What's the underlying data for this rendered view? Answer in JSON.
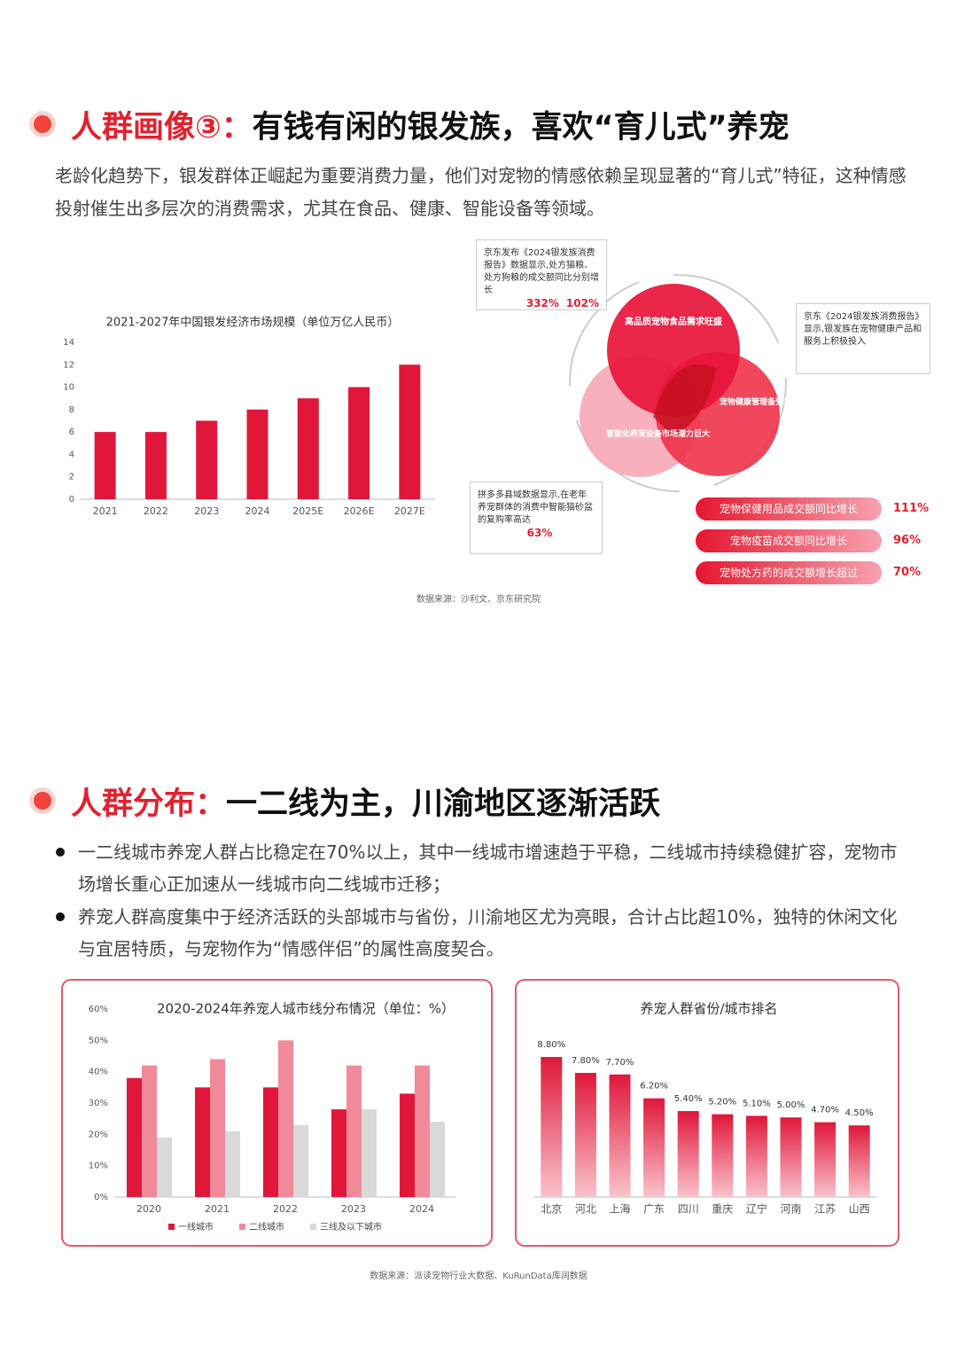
{
  "section1": {
    "title_highlight": "人群画像③：",
    "title": "有钱有闲的银发族，喜欢“育儿式”养宠",
    "paragraph": "老龄化趋势下，银发群体正崛起为重要消费力量，他们对宠物的情感依赖呈现显著的“育儿式”特征，这种情感投射催生出多层次的消费需求，尤其在食品、健康、智能设备等领域。"
  },
  "chart_data": [
    {
      "type": "bar",
      "title": "2021-2027年中国银发经济市场规模（单位万亿人民币）",
      "categories": [
        "2021",
        "2022",
        "2023",
        "2024",
        "2025E",
        "2026E",
        "2027E"
      ],
      "values": [
        6,
        6,
        7,
        8,
        9,
        10,
        12
      ],
      "color": "#e0173a",
      "ylim": [
        0,
        14
      ],
      "yticks": [
        0,
        2,
        4,
        6,
        8,
        10,
        12,
        14
      ],
      "grid": false
    },
    {
      "type": "grouped_bar",
      "title": "2020-2024年养宠人城市线分布情况（单位：%）",
      "categories": [
        "2020",
        "2021",
        "2022",
        "2023",
        "2024"
      ],
      "series": [
        {
          "name": "一线城市",
          "color": "#e0173a",
          "values": [
            38,
            35,
            35,
            28,
            33
          ]
        },
        {
          "name": "二线城市",
          "color": "#f08a98",
          "values": [
            42,
            44,
            50,
            42,
            42
          ]
        },
        {
          "name": "三线及以下城市",
          "color": "#d9d9d9",
          "values": [
            19,
            21,
            23,
            28,
            24
          ]
        }
      ],
      "ylim": [
        0,
        60
      ],
      "yticks": [
        {
          "value": 0,
          "label": "0%"
        },
        {
          "value": 10,
          "label": "10%"
        },
        {
          "value": 20,
          "label": "20%"
        },
        {
          "value": 30,
          "label": "30%"
        },
        {
          "value": 40,
          "label": "40%"
        },
        {
          "value": 50,
          "label": "50%"
        },
        {
          "value": 60,
          "label": "60%"
        }
      ],
      "grid": false,
      "legend": "bottom"
    },
    {
      "type": "bar",
      "title": "养宠人群省份/城市排名",
      "categories": [
        "北京",
        "河北",
        "上海",
        "广东",
        "四川",
        "重庆",
        "辽宁",
        "河南",
        "江苏",
        "山西"
      ],
      "values": [
        8.8,
        7.8,
        7.7,
        6.2,
        5.4,
        5.2,
        5.1,
        5.0,
        4.7,
        4.5
      ],
      "value_labels": [
        "8.80%",
        "7.80%",
        "7.70%",
        "6.20%",
        "5.40%",
        "5.20%",
        "5.10%",
        "5.00%",
        "4.70%",
        "4.50%"
      ],
      "color": "#e0173a",
      "gradient_to": "#f9c3cc"
    }
  ],
  "diagram": {
    "circles": [
      "高品质宠物食品需求旺盛",
      "宠物健康管理备受关注",
      "智能化养宠设备市场潜力巨大"
    ],
    "notes": [
      {
        "text": "京东发布《2024银发族消费报告》数据显示,处方猫粮、处方狗粮的成交额同比分别增长",
        "highlights": [
          "332%",
          "102%"
        ]
      },
      {
        "text": "京东《2024银发族消费报告》显示,银发族在宠物健康产品和服务上积极投入"
      },
      {
        "text": "拼多多县域数据显示,在老年养宠群体的消费中智能猫砂盆的复购率高达",
        "highlights": [
          "63%"
        ]
      }
    ],
    "stats": [
      {
        "label": "宠物保健用品成交额同比增长",
        "value": "111%"
      },
      {
        "label": "宠物疫苗成交额同比增长",
        "value": "96%"
      },
      {
        "label": "宠物处方药的成交额增长超过",
        "value": "70%"
      }
    ],
    "source": "数据来源：沙利文、京东研究院"
  },
  "section2": {
    "title_highlight": "人群分布：",
    "title": "一二线为主，川渝地区逐渐活跃",
    "bullets": [
      "一二线城市养宠人群占比稳定在70%以上，其中一线城市增速趋于平稳，二线城市持续稳健扩容，宠物市场增长重心正加速从一线城市向二线城市迁移；",
      "养宠人群高度集中于经济活跃的头部城市与省份，川渝地区尤为亮眼，合计占比超10%，独特的休闲文化与宜居特质，与宠物作为“情感伴侣”的属性高度契合。"
    ]
  },
  "source": "数据来源：派读宠物行业大数据、KuRunData库润数据"
}
